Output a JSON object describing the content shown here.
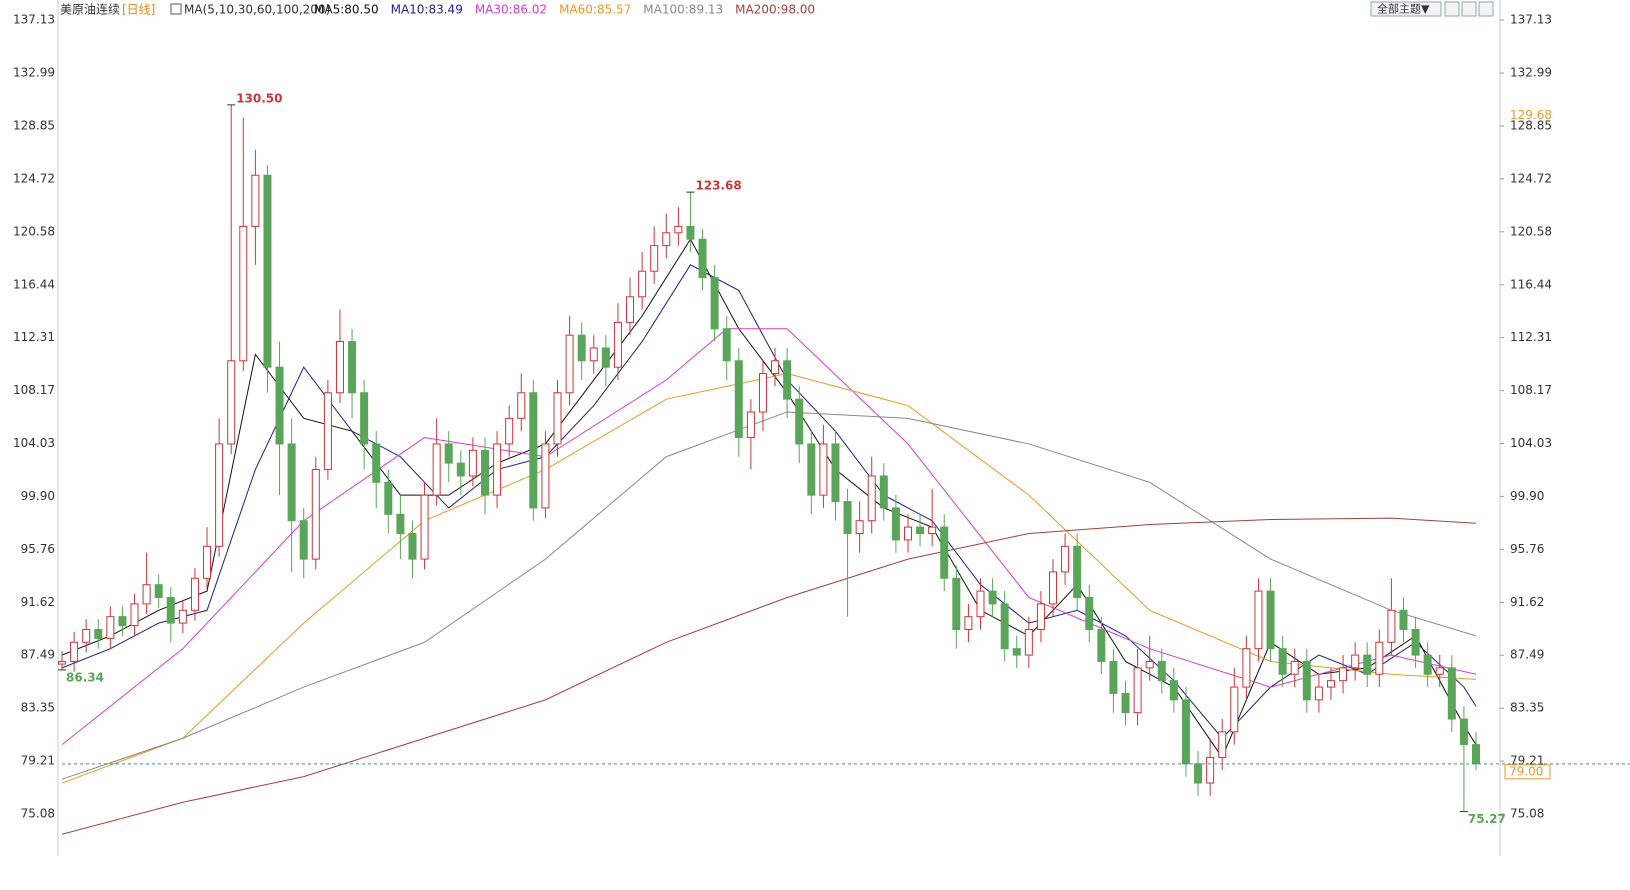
{
  "chart_data": {
    "type": "candlestick",
    "title": "美原油连续",
    "period": "[日线]",
    "indicator": "MA(5,10,30,60,100,200)",
    "theme_button": "全部主题▼",
    "up_color": "#c8373a",
    "down_color": "#5aa55a",
    "ylim": [
      72.11,
      138.07
    ],
    "yticks": [
      75.08,
      79.21,
      83.35,
      87.49,
      91.62,
      95.76,
      {
        "value": 99.9,
        "label": "99.90"
      },
      104.03,
      108.17,
      112.31,
      116.44,
      120.58,
      124.72,
      128.85,
      132.99,
      137.13
    ],
    "open": [
      86.8,
      87.0,
      88.5,
      89.5,
      88.8,
      90.5,
      89.8,
      91.5,
      93.0,
      92.0,
      90.0,
      91.0,
      93.5,
      96.0,
      104.0,
      110.5,
      121.0,
      125.0,
      110.0,
      104.0,
      98.0,
      95.0,
      102.0,
      108.0,
      112.0,
      108.0,
      104.0,
      101.0,
      98.5,
      97.0,
      95.0,
      100.0,
      104.0,
      102.5,
      101.5,
      103.5,
      100.0,
      104.0,
      106.0,
      108.0,
      99.0,
      104.0,
      108.0,
      112.5,
      110.5,
      111.5,
      110.0,
      113.5,
      115.5,
      117.5,
      119.5,
      120.5,
      121.0,
      120.0,
      117.0,
      113.0,
      110.5,
      104.5,
      106.5,
      109.5,
      110.5,
      107.5,
      104.0,
      100.0,
      104.0,
      99.5,
      97.0,
      98.0,
      101.5,
      99.0,
      96.5,
      97.5,
      97.0,
      97.5,
      93.5,
      89.5,
      90.5,
      92.5,
      91.5,
      88.0,
      87.5,
      89.5,
      91.5,
      94.0,
      96.0,
      92.0,
      89.5,
      87.0,
      84.5,
      83.0,
      86.5,
      87.0,
      85.5,
      84.0,
      79.0,
      77.5,
      79.5,
      81.5,
      85.0,
      88.0,
      92.5,
      88.0,
      86.0,
      87.0,
      84.0,
      85.0,
      85.5,
      86.5,
      87.5,
      86.0,
      88.5,
      91.0,
      89.5,
      87.5,
      86.0,
      86.5,
      82.5,
      80.5
    ],
    "high": [
      87.8,
      89.3,
      90.3,
      90.3,
      91.3,
      91.3,
      92.3,
      95.5,
      93.8,
      92.8,
      91.8,
      94.3,
      97.5,
      106,
      130.5,
      129.5,
      127,
      125.8,
      112,
      106,
      99,
      103,
      109,
      114.5,
      113,
      109,
      105,
      102,
      100,
      98,
      101,
      106,
      105,
      103.5,
      104.5,
      104.5,
      105,
      107,
      109.5,
      109,
      105,
      109,
      114,
      113.5,
      112.5,
      112.5,
      115,
      117,
      119,
      121,
      122,
      122.5,
      123.68,
      120.8,
      118,
      114,
      111.5,
      107.5,
      110.5,
      111.5,
      111.5,
      108.5,
      105,
      105.5,
      105,
      100.5,
      99.5,
      103,
      102.5,
      100,
      98.5,
      98.5,
      100.5,
      98.5,
      94.5,
      91.5,
      93.5,
      93.5,
      92.5,
      89,
      90.5,
      92.5,
      95,
      97,
      97,
      93,
      90.5,
      88,
      85.5,
      88,
      89,
      88,
      86.5,
      85,
      80,
      81,
      82.5,
      86.5,
      89,
      93.5,
      93.5,
      89,
      88,
      88,
      86,
      86.5,
      87.5,
      88.5,
      88.5,
      89.5,
      93.5,
      92,
      90.5,
      88.5,
      87.5,
      87.5,
      83.5,
      81.5
    ],
    "low": [
      86.34,
      86.2,
      87.7,
      88.0,
      88.0,
      89.0,
      89.0,
      90.7,
      91.2,
      88.5,
      89.2,
      90.2,
      92.7,
      95.2,
      103.2,
      109.7,
      118,
      108,
      100,
      94,
      93.5,
      94.2,
      101.2,
      107.2,
      106,
      102,
      99,
      97,
      95,
      93.5,
      94.2,
      99.2,
      101,
      100,
      100.7,
      98.5,
      99,
      103,
      105,
      98,
      98.2,
      103,
      107,
      109,
      109.5,
      108.5,
      109,
      112.5,
      114.5,
      116.5,
      118.5,
      119.5,
      119,
      116,
      112,
      109,
      103,
      102,
      105,
      108.5,
      106,
      102.5,
      98.5,
      99,
      98,
      90.5,
      95.5,
      97,
      98,
      95.5,
      95.5,
      96,
      96,
      92.5,
      88,
      88.5,
      89.5,
      90.5,
      87,
      86.5,
      86.5,
      88.5,
      90.5,
      93,
      91,
      88.5,
      86,
      83,
      82,
      82,
      85.5,
      84.5,
      83,
      78,
      76.5,
      76.5,
      78.5,
      80.5,
      84,
      87,
      87,
      85,
      85,
      83,
      83,
      84,
      84.5,
      85.5,
      85,
      85,
      87.5,
      88.5,
      86.5,
      85,
      85,
      81.5,
      75.27,
      78.5
    ],
    "close": [
      87.0,
      88.5,
      89.5,
      88.8,
      90.5,
      89.8,
      91.5,
      93.0,
      92.0,
      90.0,
      91.0,
      93.5,
      96.0,
      104.0,
      110.5,
      121.0,
      125.0,
      110.0,
      104.0,
      98.0,
      95.0,
      102.0,
      108.0,
      112.0,
      108.0,
      104.0,
      101.0,
      98.5,
      97.0,
      95.0,
      100.0,
      104.0,
      102.5,
      101.5,
      103.5,
      100.0,
      104.0,
      106.0,
      108.0,
      99.0,
      104.0,
      108.0,
      112.5,
      110.5,
      111.5,
      110.0,
      113.5,
      115.5,
      117.5,
      119.5,
      120.5,
      121.0,
      120.0,
      117.0,
      113.0,
      110.5,
      104.5,
      106.5,
      109.5,
      110.5,
      107.5,
      104.0,
      100.0,
      104.0,
      99.5,
      97.0,
      98.0,
      101.5,
      99.0,
      96.5,
      97.5,
      97.0,
      97.5,
      93.5,
      89.5,
      90.5,
      92.5,
      91.5,
      88.0,
      87.5,
      89.5,
      91.5,
      94.0,
      96.0,
      92.0,
      89.5,
      87.0,
      84.5,
      83.0,
      86.5,
      87.0,
      85.5,
      84.0,
      79.0,
      77.5,
      79.5,
      81.5,
      85.0,
      88.0,
      92.5,
      88.0,
      86.0,
      87.0,
      84.0,
      85.0,
      85.5,
      86.5,
      87.5,
      86.0,
      88.5,
      91.0,
      89.5,
      87.5,
      86.0,
      86.5,
      82.5,
      80.5,
      79.0
    ],
    "series": [
      {
        "name": "MA5:80.50",
        "color": "#111111",
        "x": [
          0,
          4,
          8,
          12,
          16,
          20,
          24,
          28,
          32,
          36,
          40,
          44,
          48,
          52,
          56,
          60,
          64,
          68,
          72,
          76,
          80,
          84,
          88,
          92,
          96,
          100,
          104,
          108,
          112,
          116,
          117
        ],
        "values": [
          87.5,
          89,
          91,
          92.5,
          111,
          106,
          105,
          100,
          100,
          102.5,
          104,
          109,
          114,
          120,
          113,
          108,
          102,
          99,
          97.5,
          91,
          89,
          93,
          87,
          85,
          79.5,
          88.5,
          86,
          86.5,
          89,
          82,
          80.5
        ]
      },
      {
        "name": "MA10:83.49",
        "color": "#1e1e8c",
        "x": [
          0,
          4,
          8,
          12,
          16,
          20,
          24,
          28,
          32,
          36,
          40,
          44,
          48,
          52,
          56,
          60,
          64,
          68,
          72,
          76,
          80,
          84,
          88,
          92,
          96,
          100,
          104,
          108,
          112,
          116,
          117
        ],
        "values": [
          86.5,
          88,
          90,
          91,
          102,
          110,
          105,
          103,
          99,
          102,
          103,
          107,
          112,
          118,
          116,
          109,
          105,
          100,
          98,
          93,
          90,
          91,
          89,
          85.5,
          81,
          85,
          87.5,
          86,
          88.5,
          85,
          83.5
        ]
      },
      {
        "name": "MA30:86.02",
        "color": "#d23cd2",
        "x": [
          0,
          10,
          20,
          30,
          40,
          50,
          55,
          60,
          70,
          80,
          90,
          100,
          110,
          117
        ],
        "values": [
          80.5,
          88,
          98,
          104.5,
          103,
          109,
          113,
          113,
          104,
          92,
          88,
          85,
          87.5,
          86
        ]
      },
      {
        "name": "MA60:85.57",
        "color": "#e39a2c",
        "x": [
          0,
          10,
          20,
          30,
          40,
          50,
          60,
          70,
          80,
          90,
          100,
          110,
          117
        ],
        "values": [
          77.5,
          81,
          90,
          98,
          102,
          107.5,
          109.5,
          107,
          100,
          91,
          87,
          86,
          85.6
        ]
      },
      {
        "name": "MA100:89.13",
        "color": "#888888",
        "x": [
          0,
          10,
          20,
          30,
          40,
          50,
          60,
          70,
          80,
          90,
          100,
          110,
          117
        ],
        "values": [
          77.8,
          81,
          85,
          88.5,
          95,
          103,
          106.5,
          106,
          104,
          101,
          95,
          91,
          89
        ]
      },
      {
        "name": "MA200:98.00",
        "color": "#a0413a",
        "x": [
          0,
          10,
          20,
          30,
          40,
          50,
          60,
          70,
          80,
          90,
          100,
          110,
          117
        ],
        "values": [
          73.5,
          76,
          78,
          81,
          84,
          88.5,
          92,
          95,
          97,
          97.7,
          98.1,
          98.2,
          97.8
        ]
      }
    ],
    "high_annotations": [
      {
        "value": 130.5,
        "label": "130.50"
      },
      123.68
    ],
    "low_annotations": [
      86.34,
      75.27
    ],
    "right_marker": {
      "value": 129.68,
      "label": "129.68",
      "color": "#e39a2c"
    },
    "last_price": {
      "value": 79,
      "label": "79.00",
      "color": "#e39a2c"
    }
  }
}
